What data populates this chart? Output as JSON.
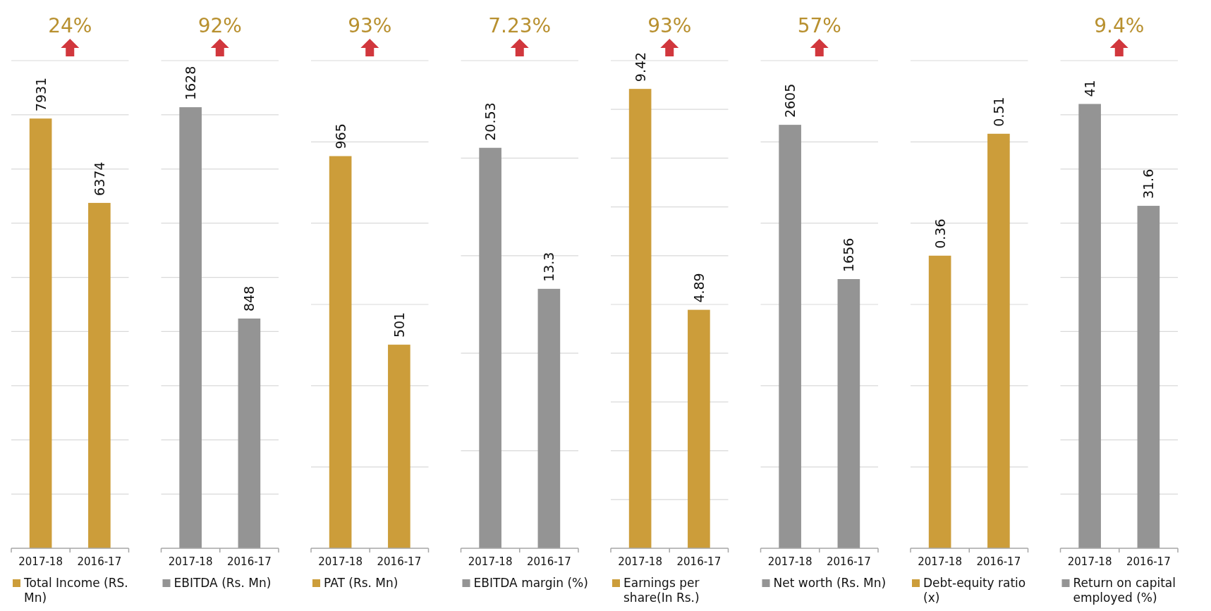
{
  "chart_data": [
    {
      "type": "bar",
      "categories": [
        "2017-18",
        "2016-17"
      ],
      "series": [
        {
          "name": "Total Income (RS. Mn)",
          "color": "#cc9d3a",
          "values": [
            7931,
            6374
          ]
        }
      ],
      "ylim": [
        0,
        9000
      ],
      "yticks": [
        {
          "value": 0,
          "label": null
        },
        {
          "value": 1000,
          "label": null
        },
        {
          "value": 2000,
          "label": null
        },
        {
          "value": 3000,
          "label": null
        },
        {
          "value": 4000,
          "label": null
        },
        {
          "value": 5000,
          "label": null
        },
        {
          "value": 6000,
          "label": null
        },
        {
          "value": 7000,
          "label": null
        },
        {
          "value": 8000,
          "label": null
        },
        {
          "value": 9000,
          "label": null
        }
      ],
      "grid": "y",
      "tick_labels": "x",
      "data_labels": true,
      "legend": "bottom",
      "annotations": [
        "24%"
      ]
    },
    {
      "type": "bar",
      "categories": [
        "2017-18",
        "2016-17"
      ],
      "series": [
        {
          "name": "EBITDA (Rs. Mn)",
          "color": "#949494",
          "values": [
            1628,
            848
          ]
        }
      ],
      "ylim": [
        0,
        1800
      ],
      "yticks": [
        {
          "value": 0,
          "label": null
        },
        {
          "value": 200,
          "label": null
        },
        {
          "value": 400,
          "label": null
        },
        {
          "value": 600,
          "label": null
        },
        {
          "value": 800,
          "label": null
        },
        {
          "value": 1000,
          "label": null
        },
        {
          "value": 1200,
          "label": null
        },
        {
          "value": 1400,
          "label": null
        },
        {
          "value": 1600,
          "label": null
        },
        {
          "value": 1800,
          "label": null
        }
      ],
      "grid": "y",
      "tick_labels": "x",
      "data_labels": true,
      "legend": "bottom",
      "annotations": [
        "92%"
      ]
    },
    {
      "type": "bar",
      "categories": [
        "2017-18",
        "2016-17"
      ],
      "series": [
        {
          "name": "PAT (Rs. Mn)",
          "color": "#cc9d3a",
          "values": [
            965,
            501
          ]
        }
      ],
      "ylim": [
        0,
        1200
      ],
      "yticks": [
        {
          "value": 0,
          "label": null
        },
        {
          "value": 200,
          "label": null
        },
        {
          "value": 400,
          "label": null
        },
        {
          "value": 600,
          "label": null
        },
        {
          "value": 800,
          "label": null
        },
        {
          "value": 1000,
          "label": null
        },
        {
          "value": 1200,
          "label": null
        }
      ],
      "grid": "y",
      "tick_labels": "x",
      "data_labels": true,
      "legend": "bottom",
      "annotations": [
        "93%"
      ]
    },
    {
      "type": "bar",
      "categories": [
        "2017-18",
        "2016-17"
      ],
      "series": [
        {
          "name": "EBITDA margin (%)",
          "color": "#949494",
          "values": [
            20.53,
            13.3
          ]
        }
      ],
      "ylim": [
        0,
        25
      ],
      "yticks": [
        {
          "value": 0,
          "label": null
        },
        {
          "value": 5,
          "label": null
        },
        {
          "value": 10,
          "label": null
        },
        {
          "value": 15,
          "label": null
        },
        {
          "value": 20,
          "label": null
        },
        {
          "value": 25,
          "label": null
        }
      ],
      "grid": "y",
      "tick_labels": "x",
      "data_labels": true,
      "legend": "bottom",
      "annotations": [
        "7.23%"
      ]
    },
    {
      "type": "bar",
      "categories": [
        "2017-18",
        "2016-17"
      ],
      "series": [
        {
          "name": "Earnings per share(In Rs.)",
          "color": "#cc9d3a",
          "values": [
            9.42,
            4.89
          ]
        }
      ],
      "ylim": [
        0,
        10
      ],
      "yticks": [
        {
          "value": 0,
          "label": null
        },
        {
          "value": 1,
          "label": null
        },
        {
          "value": 2,
          "label": null
        },
        {
          "value": 3,
          "label": null
        },
        {
          "value": 4,
          "label": null
        },
        {
          "value": 5,
          "label": null
        },
        {
          "value": 6,
          "label": null
        },
        {
          "value": 7,
          "label": null
        },
        {
          "value": 8,
          "label": null
        },
        {
          "value": 9,
          "label": null
        },
        {
          "value": 10,
          "label": null
        }
      ],
      "grid": "y",
      "tick_labels": "x",
      "data_labels": true,
      "legend": "bottom",
      "annotations": [
        "93%"
      ]
    },
    {
      "type": "bar",
      "categories": [
        "2017-18",
        "2016-17"
      ],
      "series": [
        {
          "name": "Net worth (Rs. Mn)",
          "color": "#949494",
          "values": [
            2605,
            1656
          ]
        }
      ],
      "ylim": [
        0,
        3000
      ],
      "yticks": [
        {
          "value": 0,
          "label": null
        },
        {
          "value": 500,
          "label": null
        },
        {
          "value": 1000,
          "label": null
        },
        {
          "value": 1500,
          "label": null
        },
        {
          "value": 2000,
          "label": null
        },
        {
          "value": 2500,
          "label": null
        },
        {
          "value": 3000,
          "label": null
        }
      ],
      "grid": "y",
      "tick_labels": "x",
      "data_labels": true,
      "legend": "bottom",
      "annotations": [
        "57%"
      ]
    },
    {
      "type": "bar",
      "categories": [
        "2017-18",
        "2016-17"
      ],
      "series": [
        {
          "name": "Debt-equity ratio (x)",
          "color": "#cc9d3a",
          "values": [
            0.36,
            0.51
          ]
        }
      ],
      "ylim": [
        0,
        0.6
      ],
      "yticks": [
        {
          "value": 0,
          "label": null
        },
        {
          "value": 0.1,
          "label": null
        },
        {
          "value": 0.2,
          "label": null
        },
        {
          "value": 0.3,
          "label": null
        },
        {
          "value": 0.4,
          "label": null
        },
        {
          "value": 0.5,
          "label": null
        },
        {
          "value": 0.6,
          "label": null
        }
      ],
      "grid": "y",
      "tick_labels": "x",
      "data_labels": true,
      "legend": "bottom"
    },
    {
      "type": "bar",
      "categories": [
        "2017-18",
        "2016-17"
      ],
      "series": [
        {
          "name": "Return on capital employed (%)",
          "color": "#949494",
          "values": [
            41,
            31.6
          ]
        }
      ],
      "ylim": [
        0,
        45
      ],
      "yticks": [
        {
          "value": 0,
          "label": null
        },
        {
          "value": 5,
          "label": null
        },
        {
          "value": 10,
          "label": null
        },
        {
          "value": 15,
          "label": null
        },
        {
          "value": 20,
          "label": null
        },
        {
          "value": 25,
          "label": null
        },
        {
          "value": 30,
          "label": null
        },
        {
          "value": 35,
          "label": null
        },
        {
          "value": 40,
          "label": null
        },
        {
          "value": 45,
          "label": null
        }
      ],
      "grid": "y",
      "tick_labels": "x",
      "data_labels": true,
      "legend": "bottom",
      "annotations": [
        "9.4%"
      ]
    }
  ]
}
